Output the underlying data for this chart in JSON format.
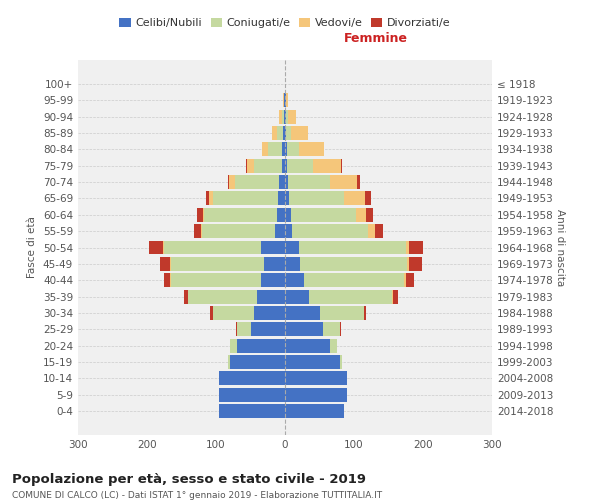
{
  "age_groups": [
    "0-4",
    "5-9",
    "10-14",
    "15-19",
    "20-24",
    "25-29",
    "30-34",
    "35-39",
    "40-44",
    "45-49",
    "50-54",
    "55-59",
    "60-64",
    "65-69",
    "70-74",
    "75-79",
    "80-84",
    "85-89",
    "90-94",
    "95-99",
    "100+"
  ],
  "birth_years": [
    "2014-2018",
    "2009-2013",
    "2004-2008",
    "1999-2003",
    "1994-1998",
    "1989-1993",
    "1984-1988",
    "1979-1983",
    "1974-1978",
    "1969-1973",
    "1964-1968",
    "1959-1963",
    "1954-1958",
    "1949-1953",
    "1944-1948",
    "1939-1943",
    "1934-1938",
    "1929-1933",
    "1924-1928",
    "1919-1923",
    "≤ 1918"
  ],
  "male": {
    "celibe": [
      95,
      95,
      95,
      80,
      70,
      50,
      45,
      40,
      35,
      30,
      35,
      15,
      12,
      10,
      8,
      5,
      4,
      3,
      2,
      1,
      0
    ],
    "coniugato": [
      0,
      0,
      0,
      2,
      10,
      20,
      60,
      100,
      130,
      135,
      140,
      105,
      105,
      95,
      65,
      40,
      20,
      8,
      3,
      1,
      0
    ],
    "vedovo": [
      0,
      0,
      0,
      0,
      0,
      0,
      0,
      1,
      1,
      1,
      2,
      2,
      2,
      5,
      8,
      10,
      10,
      8,
      3,
      1,
      0
    ],
    "divorziato": [
      0,
      0,
      0,
      0,
      0,
      1,
      3,
      5,
      10,
      15,
      20,
      10,
      8,
      5,
      2,
      1,
      0,
      0,
      0,
      0,
      0
    ]
  },
  "female": {
    "nubile": [
      85,
      90,
      90,
      80,
      65,
      55,
      50,
      35,
      28,
      22,
      20,
      10,
      8,
      6,
      5,
      3,
      3,
      1,
      1,
      1,
      0
    ],
    "coniugata": [
      0,
      0,
      0,
      3,
      10,
      25,
      65,
      120,
      145,
      155,
      155,
      110,
      95,
      80,
      60,
      38,
      18,
      7,
      3,
      1,
      0
    ],
    "vedova": [
      0,
      0,
      0,
      0,
      0,
      0,
      0,
      1,
      2,
      3,
      5,
      10,
      15,
      30,
      40,
      40,
      35,
      25,
      12,
      3,
      0
    ],
    "divorziata": [
      0,
      0,
      0,
      0,
      0,
      1,
      2,
      8,
      12,
      18,
      20,
      12,
      10,
      8,
      4,
      2,
      1,
      0,
      0,
      0,
      0
    ]
  },
  "colors": {
    "celibe": "#4472c4",
    "coniugato": "#c5d9a0",
    "vedovo": "#f5c67a",
    "divorziato": "#c0392b"
  },
  "xlim": 300,
  "title": "Popolazione per età, sesso e stato civile - 2019",
  "subtitle": "COMUNE DI CALCO (LC) - Dati ISTAT 1° gennaio 2019 - Elaborazione TUTTITALIA.IT",
  "ylabel_left": "Fasce di età",
  "ylabel_right": "Anni di nascita",
  "xlabel_right": "Femmine",
  "legend_labels": [
    "Celibi/Nubili",
    "Coniugati/e",
    "Vedovi/e",
    "Divorziati/e"
  ],
  "bg_color": "#f0f0f0",
  "grid_color": "#cccccc"
}
